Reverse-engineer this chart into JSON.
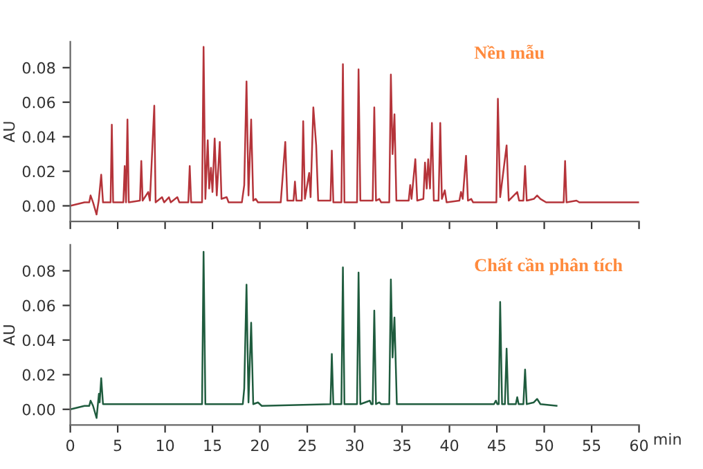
{
  "chart_data": [
    {
      "type": "line",
      "ylabel": "AU",
      "annotations": [
        "Nền mẫu"
      ],
      "tick_labels": "y",
      "xlim": [
        0,
        60
      ],
      "ylim": [
        -0.009,
        0.095
      ],
      "xticks": [
        {
          "value": 0,
          "label": null
        },
        {
          "value": 5,
          "label": null
        },
        {
          "value": 10,
          "label": null
        },
        {
          "value": 15,
          "label": null
        },
        {
          "value": 20,
          "label": null
        },
        {
          "value": 25,
          "label": null
        },
        {
          "value": 30,
          "label": null
        },
        {
          "value": 35,
          "label": null
        },
        {
          "value": 40,
          "label": null
        },
        {
          "value": 45,
          "label": null
        },
        {
          "value": 50,
          "label": null
        },
        {
          "value": 55,
          "label": null
        },
        {
          "value": 60,
          "label": null
        }
      ],
      "yticks": [
        {
          "value": 0,
          "label": "0.00"
        },
        {
          "value": 0.02,
          "label": "0.02"
        },
        {
          "value": 0.04,
          "label": "0.04"
        },
        {
          "value": 0.06,
          "label": "0.06"
        },
        {
          "value": 0.08,
          "label": "0.08"
        }
      ],
      "series": [
        {
          "color": "#b5343a",
          "x": [
            0,
            1.5,
            2.0,
            2.14,
            2.4,
            2.77,
            3.0,
            3.26,
            3.45,
            4.25,
            4.38,
            4.52,
            5.6,
            5.74,
            5.88,
            6.03,
            6.17,
            7.35,
            7.49,
            7.63,
            8.22,
            8.4,
            8.86,
            9.0,
            9.68,
            9.9,
            10.41,
            10.6,
            11.29,
            11.5,
            12.45,
            12.6,
            12.75,
            13.9,
            14.06,
            14.25,
            14.5,
            14.65,
            14.84,
            15.0,
            15.23,
            15.45,
            15.77,
            15.95,
            16.5,
            16.7,
            18.1,
            18.35,
            18.59,
            18.8,
            19.08,
            19.3,
            19.56,
            19.8,
            22.2,
            22.38,
            22.68,
            22.9,
            23.55,
            23.7,
            23.85,
            24.42,
            24.57,
            24.75,
            25.2,
            25.35,
            25.64,
            25.94,
            26.15,
            27.45,
            27.59,
            27.75,
            28.6,
            28.76,
            28.92,
            30.25,
            30.41,
            30.6,
            31.9,
            32.07,
            32.25,
            32.6,
            32.8,
            33.65,
            33.82,
            34.0,
            34.2,
            34.4,
            35.7,
            35.86,
            36.0,
            36.4,
            36.6,
            37.25,
            37.42,
            37.6,
            37.76,
            37.95,
            38.15,
            38.35,
            38.85,
            39.03,
            39.2,
            39.51,
            39.7,
            41.05,
            41.22,
            41.4,
            41.75,
            41.95,
            42.3,
            42.5,
            44.95,
            45.11,
            45.35,
            46.03,
            46.25,
            47.15,
            47.35,
            47.8,
            47.98,
            48.15,
            48.9,
            49.25,
            49.6,
            50.2,
            52.05,
            52.2,
            52.35,
            53.4,
            53.7,
            60
          ],
          "values": [
            0.0,
            0.002,
            0.002,
            0.006,
            0.002,
            -0.005,
            0.003,
            0.018,
            0.002,
            0.002,
            0.047,
            0.002,
            0.002,
            0.023,
            0.002,
            0.05,
            0.002,
            0.003,
            0.026,
            0.003,
            0.008,
            0.003,
            0.058,
            0.002,
            0.005,
            0.002,
            0.005,
            0.002,
            0.005,
            0.002,
            0.002,
            0.023,
            0.002,
            0.002,
            0.092,
            0.004,
            0.038,
            0.01,
            0.022,
            0.008,
            0.039,
            0.006,
            0.037,
            0.004,
            0.005,
            0.002,
            0.002,
            0.012,
            0.072,
            0.006,
            0.05,
            0.003,
            0.004,
            0.002,
            0.002,
            0.015,
            0.037,
            0.003,
            0.003,
            0.014,
            0.003,
            0.003,
            0.049,
            0.004,
            0.019,
            0.005,
            0.057,
            0.035,
            0.003,
            0.003,
            0.032,
            0.002,
            0.002,
            0.082,
            0.002,
            0.002,
            0.079,
            0.003,
            0.003,
            0.057,
            0.003,
            0.004,
            0.002,
            0.002,
            0.076,
            0.03,
            0.053,
            0.003,
            0.003,
            0.012,
            0.004,
            0.027,
            0.003,
            0.004,
            0.025,
            0.01,
            0.027,
            0.01,
            0.048,
            0.003,
            0.003,
            0.048,
            0.004,
            0.009,
            0.002,
            0.003,
            0.008,
            0.004,
            0.029,
            0.003,
            0.004,
            0.002,
            0.002,
            0.062,
            0.005,
            0.035,
            0.003,
            0.008,
            0.003,
            0.003,
            0.023,
            0.003,
            0.004,
            0.006,
            0.004,
            0.002,
            0.002,
            0.026,
            0.002,
            0.003,
            0.002,
            0.002
          ]
        }
      ]
    },
    {
      "type": "line",
      "ylabel": "AU",
      "xlabel": "min",
      "annotations": [
        "Chất cần phân tích"
      ],
      "xlim": [
        0,
        60
      ],
      "ylim": [
        -0.009,
        0.095
      ],
      "xticks": [
        0,
        5,
        10,
        15,
        20,
        25,
        30,
        35,
        40,
        45,
        50,
        55,
        60
      ],
      "yticks": [
        {
          "value": 0,
          "label": "0.00"
        },
        {
          "value": 0.02,
          "label": "0.02"
        },
        {
          "value": 0.04,
          "label": "0.04"
        },
        {
          "value": 0.06,
          "label": "0.06"
        },
        {
          "value": 0.08,
          "label": "0.08"
        }
      ],
      "series": [
        {
          "color": "#1f5c3e",
          "x": [
            0,
            1.5,
            2.0,
            2.14,
            2.4,
            2.77,
            3.02,
            3.1,
            3.26,
            3.45,
            13.9,
            14.06,
            14.25,
            18.2,
            18.35,
            18.59,
            18.8,
            19.08,
            19.3,
            19.8,
            20.2,
            27.45,
            27.59,
            27.75,
            28.6,
            28.76,
            28.92,
            30.25,
            30.41,
            30.6,
            31.6,
            31.75,
            31.9,
            32.07,
            32.25,
            32.6,
            32.8,
            33.65,
            33.82,
            34.0,
            34.2,
            34.45,
            44.7,
            44.9,
            45.05,
            45.2,
            45.35,
            45.55,
            45.85,
            46.03,
            46.2,
            47.0,
            47.15,
            47.3,
            47.8,
            47.98,
            48.15,
            48.9,
            49.25,
            49.6,
            51.3
          ],
          "values": [
            0.0,
            0.002,
            0.002,
            0.005,
            0.002,
            -0.005,
            0.009,
            0.004,
            0.018,
            0.003,
            0.003,
            0.091,
            0.003,
            0.003,
            0.012,
            0.072,
            0.004,
            0.05,
            0.003,
            0.004,
            0.002,
            0.003,
            0.032,
            0.003,
            0.003,
            0.082,
            0.003,
            0.003,
            0.079,
            0.003,
            0.005,
            0.003,
            0.003,
            0.057,
            0.003,
            0.004,
            0.003,
            0.003,
            0.075,
            0.03,
            0.053,
            0.003,
            0.003,
            0.005,
            0.003,
            0.003,
            0.062,
            0.003,
            0.003,
            0.035,
            0.003,
            0.003,
            0.007,
            0.003,
            0.003,
            0.023,
            0.003,
            0.004,
            0.006,
            0.003,
            0.002
          ]
        }
      ]
    }
  ]
}
